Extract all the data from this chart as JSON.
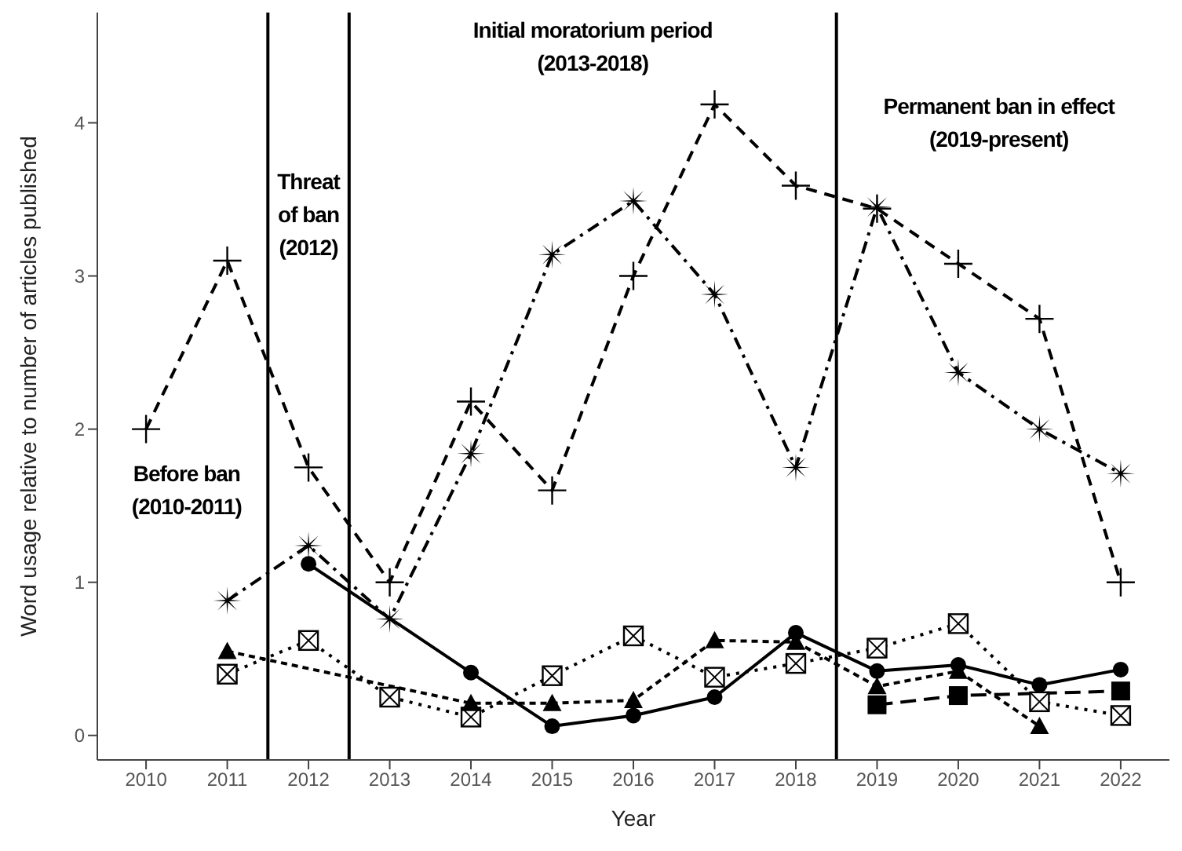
{
  "chart_data": {
    "type": "line",
    "xlabel": "Year",
    "ylabel": "Word usage relative to number of articles published",
    "x": [
      2010,
      2011,
      2012,
      2013,
      2014,
      2015,
      2016,
      2017,
      2018,
      2019,
      2020,
      2021,
      2022
    ],
    "xlim": [
      2009.4,
      2022.6
    ],
    "xticks": [
      2010,
      2011,
      2012,
      2013,
      2014,
      2015,
      2016,
      2017,
      2018,
      2019,
      2020,
      2021,
      2022
    ],
    "ylim": [
      -0.16,
      4.72
    ],
    "yticks": [
      0,
      1,
      2,
      3,
      4
    ],
    "series": [
      {
        "color": "#000000",
        "marker": "cross",
        "line_style": "dashed",
        "values": [
          2.0,
          3.1,
          1.75,
          1.0,
          2.18,
          1.6,
          3.0,
          4.12,
          3.59,
          3.44,
          3.08,
          2.72,
          1.0
        ]
      },
      {
        "color": "#000000",
        "marker": "star",
        "line_style": "dashed",
        "values": [
          null,
          0.88,
          1.24,
          0.76,
          1.84,
          3.14,
          3.49,
          2.88,
          1.75,
          3.45,
          2.37,
          2.0,
          1.71
        ]
      },
      {
        "color": "#000000",
        "marker": "circle",
        "line_style": "solid",
        "values": [
          null,
          null,
          1.12,
          null,
          0.41,
          0.06,
          0.13,
          0.25,
          0.67,
          0.42,
          0.46,
          0.33,
          0.43
        ]
      },
      {
        "color": "#000000",
        "marker": "triangle",
        "line_style": "dashed",
        "values": [
          null,
          0.55,
          null,
          null,
          0.21,
          0.21,
          0.23,
          0.62,
          0.61,
          0.32,
          0.42,
          0.06,
          null
        ]
      },
      {
        "color": "#000000",
        "marker": "square",
        "line_style": "dotted",
        "values": [
          null,
          0.4,
          0.62,
          0.25,
          0.12,
          0.39,
          0.65,
          0.38,
          0.47,
          0.57,
          0.73,
          0.22,
          0.13
        ]
      },
      {
        "color": "#000000",
        "marker": "square",
        "line_style": "dashed",
        "values": [
          null,
          null,
          null,
          null,
          null,
          null,
          null,
          null,
          null,
          0.2,
          0.26,
          null,
          0.29
        ]
      }
    ],
    "ref_lines": [
      {
        "axis": "x",
        "value": 2011.5,
        "color": "#000000",
        "line_style": "solid"
      },
      {
        "axis": "x",
        "value": 2012.5,
        "color": "#000000",
        "line_style": "solid"
      },
      {
        "axis": "x",
        "value": 2018.5,
        "color": "#000000",
        "line_style": "solid"
      }
    ],
    "annotations": [
      "Before ban\n(2010-2011)",
      "Threat\nof ban\n(2012)",
      "Initial moratorium period\n(2013-2018)",
      "Permanent ban in effect\n(2019-present)"
    ]
  }
}
